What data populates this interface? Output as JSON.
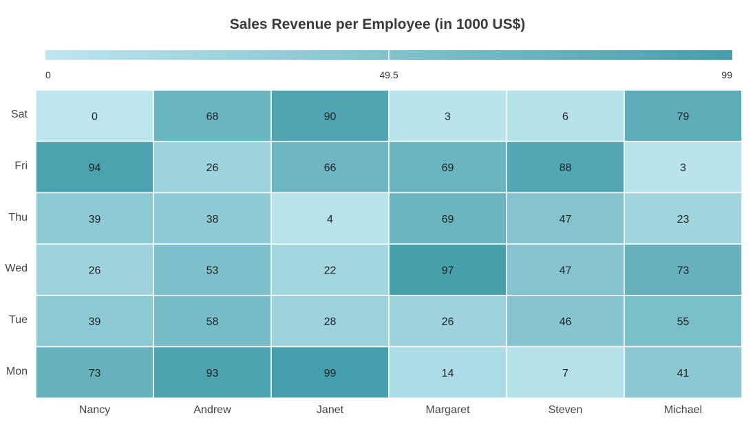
{
  "chart_data": {
    "type": "heatmap",
    "title": "Sales Revenue per Employee (in 1000 US$)",
    "x_categories": [
      "Nancy",
      "Andrew",
      "Janet",
      "Margaret",
      "Steven",
      "Michael"
    ],
    "y_categories": [
      "Mon",
      "Tue",
      "Wed",
      "Thu",
      "Fri",
      "Sat"
    ],
    "rows": [
      {
        "label": "Sat",
        "values": [
          0,
          68,
          90,
          3,
          6,
          79
        ]
      },
      {
        "label": "Fri",
        "values": [
          94,
          26,
          66,
          69,
          88,
          3
        ]
      },
      {
        "label": "Thu",
        "values": [
          39,
          38,
          4,
          69,
          47,
          23
        ]
      },
      {
        "label": "Wed",
        "values": [
          26,
          53,
          22,
          97,
          47,
          73
        ]
      },
      {
        "label": "Tue",
        "values": [
          39,
          58,
          28,
          26,
          46,
          55
        ]
      },
      {
        "label": "Mon",
        "values": [
          73,
          93,
          99,
          14,
          7,
          41
        ]
      }
    ],
    "color_scale": {
      "min": 0,
      "mid": 49.5,
      "max": 99,
      "min_label": "0",
      "mid_label": "49.5",
      "max_label": "99",
      "min_color": "#BDE6EE",
      "max_color": "#469FAC"
    },
    "legend_position": "top",
    "grid_color": "#ffffff"
  }
}
